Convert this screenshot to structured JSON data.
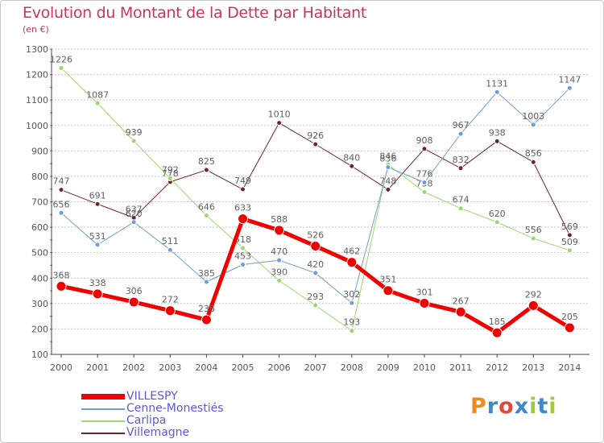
{
  "title": "Evolution du Montant de la Dette par Habitant",
  "subtitle": "(en €)",
  "logo": {
    "letters": [
      "P",
      "r",
      "o",
      "x",
      "i",
      "t",
      "i"
    ],
    "colors": [
      "#f08a1e",
      "#3f89c9",
      "#e2483f",
      "#3f89c9",
      "#9ccb3b",
      "#3f89c9",
      "#9ccb3b"
    ]
  },
  "chart_data": {
    "type": "line",
    "x": [
      "2000",
      "2001",
      "2002",
      "2003",
      "2004",
      "2005",
      "2006",
      "2007",
      "2008",
      "2009",
      "2010",
      "2011",
      "2012",
      "2013",
      "2014"
    ],
    "y_ticks": [
      "100",
      "200",
      "300",
      "400",
      "500",
      "600",
      "700",
      "800",
      "900",
      "1000",
      "1100",
      "1200",
      "1300"
    ],
    "ylim": [
      100,
      1300
    ],
    "grid": "horizontal dotted",
    "legend_position": "bottom-left",
    "series": [
      {
        "name": "Villemagne",
        "color": "#6e2626",
        "width": 1,
        "values": [
          747,
          691,
          637,
          778,
          825,
          749,
          1010,
          926,
          840,
          748,
          908,
          832,
          938,
          856,
          569
        ]
      },
      {
        "name": "Carlipa",
        "color": "#9ad86a",
        "width": 1,
        "values": [
          1226,
          1087,
          939,
          792,
          646,
          518,
          390,
          293,
          193,
          846,
          738,
          674,
          620,
          556,
          509
        ]
      },
      {
        "name": "Cenne-Monestiés",
        "color": "#6f9ed3",
        "width": 1,
        "values": [
          656,
          531,
          620,
          511,
          385,
          453,
          470,
          420,
          302,
          836,
          776,
          967,
          1131,
          1003,
          1147
        ]
      },
      {
        "name": "VILLESPY",
        "color": "#f00000",
        "width": 5,
        "values": [
          368,
          338,
          306,
          272,
          236,
          633,
          588,
          526,
          462,
          351,
          301,
          267,
          185,
          292,
          205
        ]
      }
    ],
    "legend": [
      "VILLESPY",
      "Cenne-Monestiés",
      "Carlipa",
      "Villemagne"
    ]
  }
}
